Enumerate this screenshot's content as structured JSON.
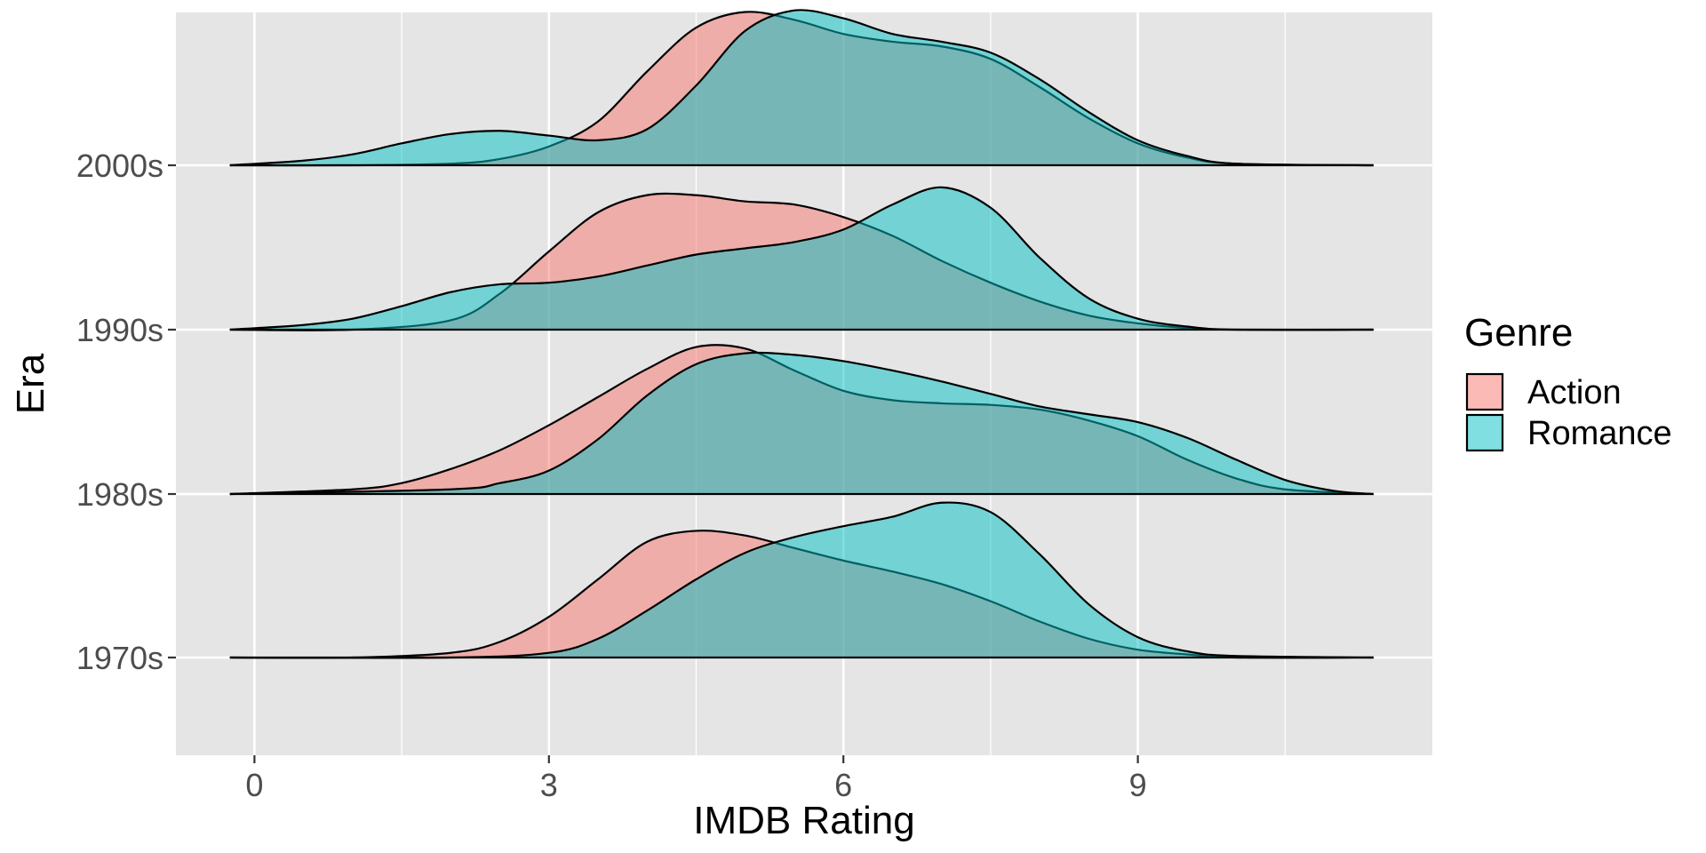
{
  "chart_data": {
    "type": "ridgeline",
    "title": "",
    "xlabel": "IMDB Rating",
    "ylabel": "Era",
    "xlim": [
      -0.8,
      12.0
    ],
    "x_ticks": [
      0,
      3,
      6,
      9
    ],
    "x_tick_labels": [
      "0",
      "3",
      "6",
      "9"
    ],
    "x_range": [
      -0.25,
      11.4
    ],
    "categories": [
      "1970s",
      "1980s",
      "1990s",
      "2000s"
    ],
    "grid": true,
    "legend": {
      "title": "Genre",
      "position": "right",
      "entries": [
        "Action",
        "Romance"
      ]
    },
    "colors": {
      "Action": "#F8766D",
      "Romance": "#00BFC4",
      "panel_background": "#E5E5E5",
      "grid": "#FFFFFF",
      "outline": "#000000"
    },
    "fill_opacity": 0.5,
    "series": [
      {
        "name": "Action",
        "densities": [
          {
            "era": "1970s",
            "x": [
              -0.25,
              1.0,
              2.0,
              2.5,
              3.0,
              3.5,
              4.0,
              4.5,
              5.0,
              5.5,
              6.0,
              6.5,
              7.0,
              7.5,
              8.0,
              8.5,
              9.0,
              9.5,
              10.0,
              11.4
            ],
            "height": [
              0.0,
              0.0,
              0.03,
              0.1,
              0.26,
              0.5,
              0.74,
              0.81,
              0.78,
              0.7,
              0.62,
              0.55,
              0.47,
              0.36,
              0.23,
              0.12,
              0.05,
              0.02,
              0.0,
              0.0
            ]
          },
          {
            "era": "1980s",
            "x": [
              -0.25,
              1.0,
              1.5,
              2.0,
              2.5,
              3.0,
              3.5,
              4.0,
              4.5,
              5.0,
              5.5,
              6.0,
              6.5,
              7.0,
              7.5,
              8.0,
              8.5,
              9.0,
              9.5,
              10.0,
              10.5,
              11.4
            ],
            "height": [
              0.0,
              0.03,
              0.07,
              0.16,
              0.28,
              0.44,
              0.62,
              0.8,
              0.94,
              0.93,
              0.79,
              0.66,
              0.6,
              0.58,
              0.57,
              0.54,
              0.47,
              0.37,
              0.22,
              0.1,
              0.03,
              0.0
            ]
          },
          {
            "era": "1990s",
            "x": [
              -0.25,
              1.0,
              2.0,
              2.5,
              3.0,
              3.5,
              4.0,
              4.5,
              5.0,
              5.5,
              6.0,
              6.5,
              7.0,
              7.5,
              8.0,
              8.5,
              9.0,
              9.5,
              10.0,
              11.4
            ],
            "height": [
              0.0,
              0.0,
              0.06,
              0.23,
              0.5,
              0.75,
              0.86,
              0.86,
              0.82,
              0.8,
              0.72,
              0.6,
              0.44,
              0.3,
              0.18,
              0.09,
              0.04,
              0.01,
              0.0,
              0.0
            ]
          },
          {
            "era": "2000s",
            "x": [
              -0.25,
              1.0,
              2.0,
              2.5,
              3.0,
              3.5,
              4.0,
              4.5,
              5.0,
              5.5,
              6.0,
              6.5,
              7.0,
              7.5,
              8.0,
              8.5,
              9.0,
              9.5,
              10.0,
              11.4
            ],
            "height": [
              0.0,
              0.0,
              0.01,
              0.04,
              0.12,
              0.28,
              0.6,
              0.88,
              0.98,
              0.93,
              0.84,
              0.79,
              0.76,
              0.68,
              0.5,
              0.3,
              0.14,
              0.05,
              0.01,
              0.0
            ]
          }
        ]
      },
      {
        "name": "Romance",
        "densities": [
          {
            "era": "1970s",
            "x": [
              -0.25,
              2.0,
              3.0,
              3.5,
              4.0,
              4.5,
              5.0,
              5.5,
              6.0,
              6.5,
              7.0,
              7.5,
              8.0,
              8.5,
              9.0,
              9.5,
              10.0,
              11.4
            ],
            "height": [
              0.0,
              0.0,
              0.03,
              0.12,
              0.3,
              0.5,
              0.67,
              0.77,
              0.84,
              0.9,
              0.99,
              0.93,
              0.66,
              0.34,
              0.13,
              0.04,
              0.01,
              0.0
            ]
          },
          {
            "era": "1980s",
            "x": [
              -0.25,
              2.0,
              2.5,
              3.0,
              3.5,
              4.0,
              4.5,
              5.0,
              5.5,
              6.0,
              6.5,
              7.0,
              7.5,
              8.0,
              8.5,
              9.0,
              9.5,
              10.0,
              10.5,
              11.0,
              11.4
            ],
            "height": [
              0.0,
              0.03,
              0.07,
              0.15,
              0.35,
              0.63,
              0.83,
              0.9,
              0.89,
              0.85,
              0.79,
              0.72,
              0.64,
              0.56,
              0.51,
              0.46,
              0.36,
              0.22,
              0.09,
              0.02,
              0.0
            ]
          },
          {
            "era": "1990s",
            "x": [
              -0.25,
              0.5,
              1.0,
              1.5,
              2.0,
              2.5,
              3.0,
              3.5,
              4.0,
              4.5,
              5.0,
              5.5,
              6.0,
              6.5,
              7.0,
              7.5,
              8.0,
              8.5,
              9.0,
              9.5,
              10.0,
              11.4
            ],
            "height": [
              0.0,
              0.03,
              0.07,
              0.15,
              0.24,
              0.29,
              0.3,
              0.34,
              0.41,
              0.48,
              0.52,
              0.56,
              0.64,
              0.8,
              0.91,
              0.78,
              0.46,
              0.2,
              0.07,
              0.02,
              0.0,
              0.0
            ]
          },
          {
            "era": "2000s",
            "x": [
              -0.25,
              0.5,
              1.0,
              1.5,
              2.0,
              2.5,
              3.0,
              3.5,
              4.0,
              4.5,
              5.0,
              5.5,
              6.0,
              6.5,
              7.0,
              7.5,
              8.0,
              8.5,
              9.0,
              9.5,
              10.0,
              11.4
            ],
            "height": [
              0.0,
              0.03,
              0.07,
              0.14,
              0.2,
              0.22,
              0.19,
              0.16,
              0.23,
              0.51,
              0.86,
              0.99,
              0.94,
              0.84,
              0.79,
              0.72,
              0.55,
              0.34,
              0.16,
              0.06,
              0.01,
              0.0
            ]
          }
        ]
      }
    ]
  }
}
